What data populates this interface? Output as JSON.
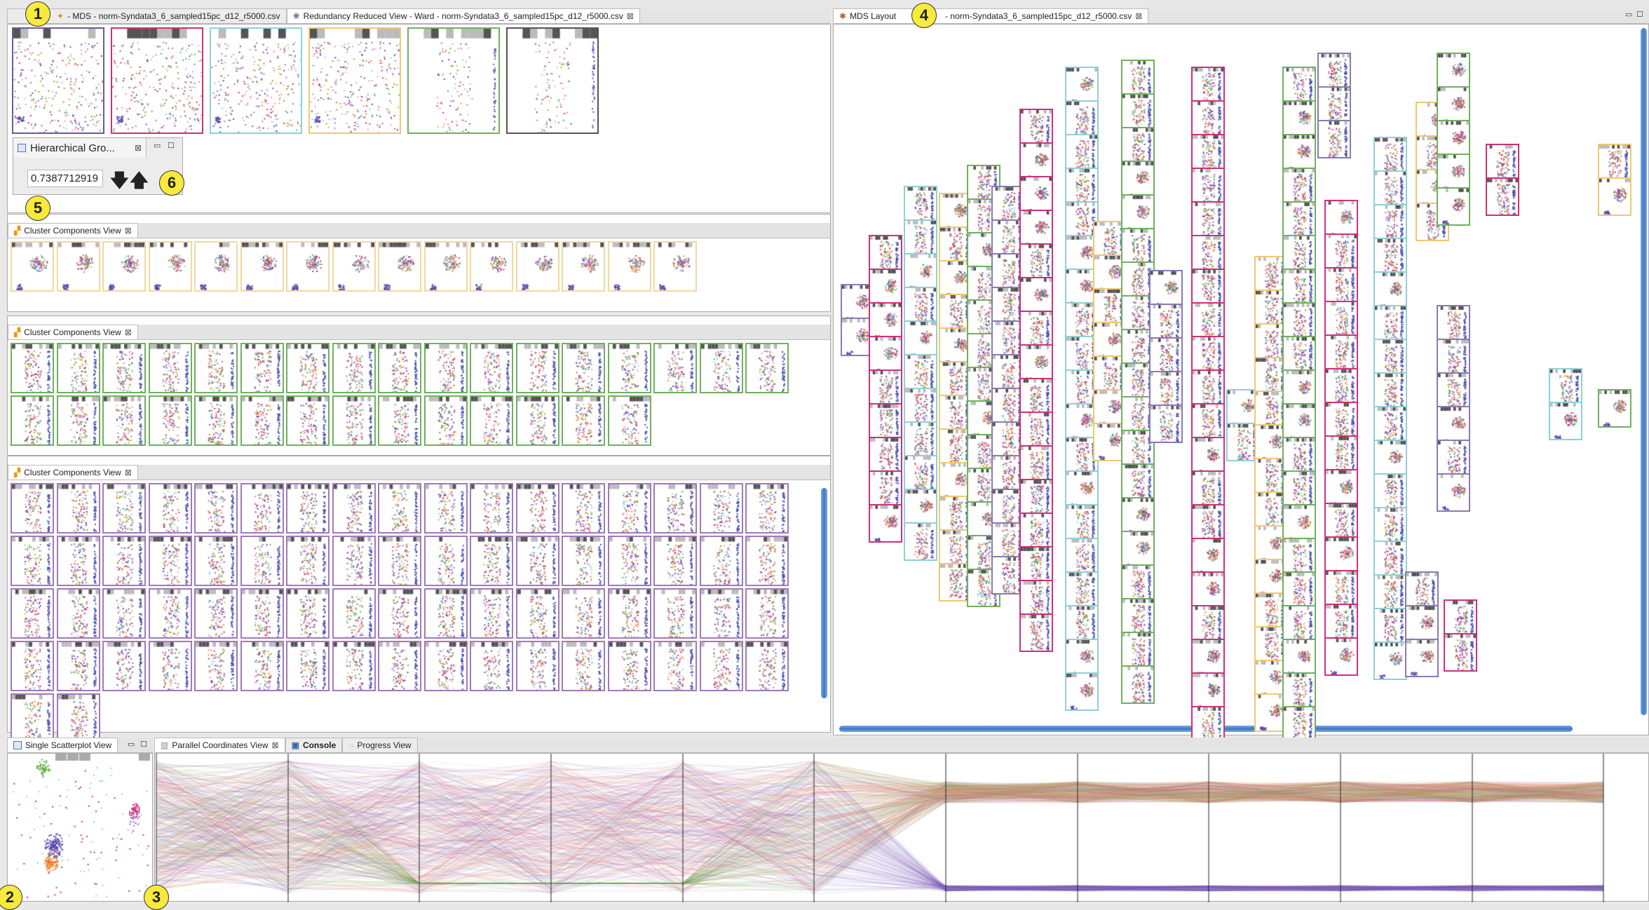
{
  "callouts": [
    "1",
    "2",
    "3",
    "4",
    "5",
    "6"
  ],
  "top_left": {
    "tabs": [
      {
        "label": "- MDS - norm-Syndata3_6_sampled15pc_d12_r5000.csv",
        "icon": "mds-icon"
      },
      {
        "label": "Redundancy Reduced View - Ward - norm-Syndata3_6_sampled15pc_d12_r5000.csv",
        "icon": "redundancy-icon",
        "active": true
      }
    ],
    "thumb_colors": [
      "#6a5a9a",
      "#d0307a",
      "#8fd0d8",
      "#f0c870",
      "#70b060",
      "#555555"
    ]
  },
  "hierarchical": {
    "title": "Hierarchical Gro...",
    "threshold_value": "0.7387712919",
    "down_icon": "arrow-down-icon",
    "up_icon": "arrow-up-icon"
  },
  "cluster_views": [
    {
      "title": "Cluster Components View",
      "rows": [
        15
      ],
      "colors": [
        "#f0d9a0"
      ]
    },
    {
      "title": "Cluster Components View",
      "rows": [
        17,
        14
      ],
      "colors": [
        "#70b060"
      ]
    },
    {
      "title": "Cluster Components View",
      "rows": [
        17,
        17,
        17,
        17,
        2
      ],
      "colors": [
        "#a07ab8"
      ]
    }
  ],
  "mds": {
    "tab_label": "MDS Layout",
    "tab_file": "- norm-Syndata3_6_sampled15pc_d12_r5000.csv",
    "border_colors": [
      "#8a7ab0",
      "#d0307a",
      "#8fd0d8",
      "#f0c870",
      "#70b060"
    ]
  },
  "bottom": {
    "scatter_title": "Single Scatterplot View",
    "tabs": [
      {
        "label": "Parallel Coordinates View",
        "active": true
      },
      {
        "label": "Console"
      },
      {
        "label": "Progress View"
      }
    ],
    "axis_count": 12,
    "series_colors": [
      "#a070c0",
      "#f08a30",
      "#d03080",
      "#60b040",
      "#8fd0e0",
      "#5a4ab0",
      "#f0a090"
    ]
  }
}
